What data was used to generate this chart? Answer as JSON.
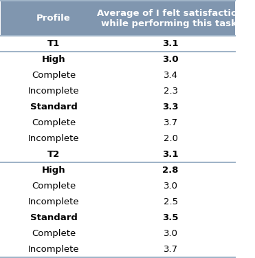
{
  "header_col1": "Profile",
  "header_col2": "Average of I felt satisfaction\nwhile performing this task.",
  "header_bg": "#8096af",
  "header_text_color": "#ffffff",
  "rows": [
    {
      "label": "T1",
      "value": "3.1",
      "bold": true,
      "divider_below": true
    },
    {
      "label": "High",
      "value": "3.0",
      "bold": true,
      "divider_below": false
    },
    {
      "label": "Complete",
      "value": "3.4",
      "bold": false,
      "divider_below": false
    },
    {
      "label": "Incomplete",
      "value": "2.3",
      "bold": false,
      "divider_below": false
    },
    {
      "label": "Standard",
      "value": "3.3",
      "bold": true,
      "divider_below": false
    },
    {
      "label": "Complete",
      "value": "3.7",
      "bold": false,
      "divider_below": false
    },
    {
      "label": "Incomplete",
      "value": "2.0",
      "bold": false,
      "divider_below": false
    },
    {
      "label": "T2",
      "value": "3.1",
      "bold": true,
      "divider_below": true
    },
    {
      "label": "High",
      "value": "2.8",
      "bold": true,
      "divider_below": false
    },
    {
      "label": "Complete",
      "value": "3.0",
      "bold": false,
      "divider_below": false
    },
    {
      "label": "Incomplete",
      "value": "2.5",
      "bold": false,
      "divider_below": false
    },
    {
      "label": "Standard",
      "value": "3.5",
      "bold": true,
      "divider_below": false
    },
    {
      "label": "Complete",
      "value": "3.0",
      "bold": false,
      "divider_below": false
    },
    {
      "label": "Incomplete",
      "value": "3.7",
      "bold": false,
      "divider_below": false
    }
  ],
  "row_bg_white": "#ffffff",
  "divider_color": "#a0b4c8",
  "text_color": "#000000",
  "font_size": 9.5,
  "header_font_size": 9.5,
  "figsize": [
    3.71,
    3.75
  ],
  "dpi": 100
}
